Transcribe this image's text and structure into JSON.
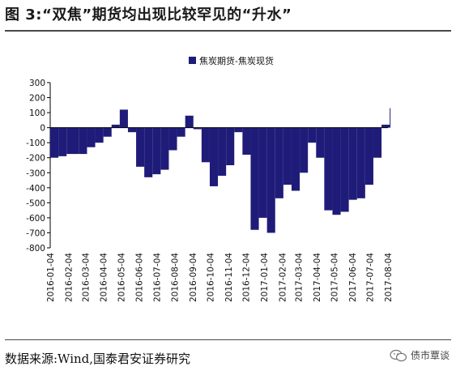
{
  "figure": {
    "title": "图 3:“双焦”期货均出现比较罕见的“升水”",
    "source": "数据来源:Wind,国泰君安证券研究",
    "watermark": "债市覃谈"
  },
  "chart_data": {
    "type": "bar",
    "title": "",
    "xlabel": "",
    "ylabel": "",
    "ylim": [
      -800,
      300
    ],
    "yticks": [
      -800,
      -700,
      -600,
      -500,
      -400,
      -300,
      -200,
      -100,
      0,
      100,
      200,
      300
    ],
    "xtick_labels": [
      "2016-01-04",
      "2016-02-04",
      "2016-03-04",
      "2016-04-04",
      "2016-05-04",
      "2016-06-04",
      "2016-07-04",
      "2016-08-04",
      "2016-09-04",
      "2016-10-04",
      "2016-11-04",
      "2016-12-04",
      "2017-01-04",
      "2017-02-04",
      "2017-03-04",
      "2017-04-04",
      "2017-05-04",
      "2017-06-04",
      "2017-07-04",
      "2017-08-04"
    ],
    "legend": "top-center",
    "color": "#1f1c79",
    "series": [
      {
        "name": "焦炭期货-焦炭现货",
        "x": [
          "2016-01-04",
          "2016-01-18",
          "2016-02-01",
          "2016-02-22",
          "2016-03-07",
          "2016-03-21",
          "2016-04-04",
          "2016-04-18",
          "2016-05-02",
          "2016-05-16",
          "2016-05-30",
          "2016-06-13",
          "2016-06-27",
          "2016-07-11",
          "2016-07-25",
          "2016-08-08",
          "2016-08-22",
          "2016-09-05",
          "2016-09-19",
          "2016-10-03",
          "2016-10-17",
          "2016-10-31",
          "2016-11-14",
          "2016-11-28",
          "2016-12-12",
          "2016-12-26",
          "2017-01-09",
          "2017-01-23",
          "2017-02-06",
          "2017-02-20",
          "2017-03-06",
          "2017-03-20",
          "2017-04-03",
          "2017-04-17",
          "2017-05-01",
          "2017-05-15",
          "2017-05-29",
          "2017-06-12",
          "2017-06-26",
          "2017-07-10",
          "2017-07-24",
          "2017-08-07"
        ],
        "values": [
          -200,
          -190,
          -175,
          -175,
          -130,
          -100,
          -60,
          20,
          120,
          -30,
          -260,
          -330,
          -310,
          -280,
          -150,
          -60,
          80,
          -10,
          -230,
          -390,
          -320,
          -250,
          -30,
          -180,
          -680,
          -600,
          -700,
          -470,
          -380,
          -420,
          -300,
          -100,
          -200,
          -550,
          -580,
          -560,
          -480,
          -470,
          -380,
          -200,
          20,
          130
        ]
      }
    ]
  }
}
